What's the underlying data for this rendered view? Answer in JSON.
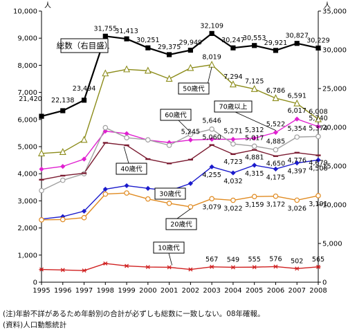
{
  "chart_data": {
    "type": "line",
    "categories": [
      "1995",
      "1996",
      "1997",
      "1998",
      "1999",
      "2000",
      "2001",
      "2002",
      "2003",
      "2004",
      "2005",
      "2006",
      "2007",
      "2008"
    ],
    "left_axis": {
      "unit": "人",
      "min": 0,
      "max": 10000,
      "ticks": [
        "0",
        "1,000",
        "2,000",
        "3,000",
        "4,000",
        "5,000",
        "6,000",
        "7,000",
        "8,000",
        "9,000",
        "10,000"
      ]
    },
    "right_axis": {
      "unit": "人",
      "min": 0,
      "max": 35000,
      "ticks": [
        "0",
        "5,000",
        "10,000",
        "15,000",
        "20,000",
        "25,000",
        "30,000",
        "35,000"
      ]
    },
    "series": [
      {
        "name": "総数（右目盛）",
        "axis": "right",
        "color": "#000000",
        "marker": "square",
        "values": [
          21420,
          22138,
          23494,
          31755,
          31413,
          30251,
          29375,
          29949,
          32109,
          30247,
          30553,
          29921,
          30827,
          30229
        ],
        "labels": [
          "21,420",
          "22,138",
          "23,494",
          "31,755",
          "31,413",
          "30,251",
          "29,375",
          "29,949",
          "32,109",
          "30,247",
          "30,553",
          "29,921",
          "30,827",
          "30,229"
        ]
      },
      {
        "name": "50歳代",
        "axis": "left",
        "color": "#8c8c1a",
        "marker": "triangle",
        "values": [
          4750,
          4800,
          5250,
          7700,
          7850,
          7800,
          7500,
          7900,
          8019,
          7294,
          7125,
          6786,
          6591,
          6008
        ],
        "labels": [
          "",
          "",
          "",
          "",
          "",
          "",
          "",
          "",
          "8,019",
          "7,294",
          "7,125",
          "6,786",
          "6,591",
          "6,008"
        ]
      },
      {
        "name": "70歳以上",
        "axis": "left",
        "color": "#e020d0",
        "marker": "diamond",
        "values": [
          4170,
          4270,
          4540,
          5570,
          5480,
          5240,
          5150,
          5245,
          5271,
          5271,
          5312,
          5522,
          6017,
          5740
        ],
        "labels": [
          "",
          "",
          "",
          "",
          "",
          "",
          "",
          "5,245",
          "",
          "5,271",
          "5,312",
          "5,522",
          "6,017",
          "5,740"
        ]
      },
      {
        "name": "60歳代",
        "axis": "left",
        "color": "#a0a0a0",
        "marker": "circle",
        "values": [
          3380,
          3760,
          4000,
          5700,
          5330,
          5250,
          5050,
          5450,
          5646,
          5100,
          5017,
          4885,
          5354,
          5374
        ],
        "labels": [
          "",
          "",
          "",
          "",
          "",
          "",
          "",
          "",
          "5,646",
          "",
          "5,017",
          "4,885",
          "5,354",
          "5,374"
        ]
      },
      {
        "name": "40歳代",
        "axis": "left",
        "color": "#7a1a30",
        "marker": "dash",
        "values": [
          3780,
          3930,
          4020,
          5140,
          5050,
          4540,
          4380,
          4520,
          5060,
          4723,
          4881,
          4650,
          4776,
          4679
        ],
        "labels": [
          "",
          "",
          "",
          "",
          "",
          "",
          "",
          "",
          "5,060",
          "4,723",
          "4,881",
          "4,650",
          "4,776",
          "4,679"
        ]
      },
      {
        "name": "30歳代",
        "axis": "left",
        "color": "#1a1acc",
        "marker": "diamond",
        "values": [
          2330,
          2420,
          2620,
          3430,
          3560,
          3460,
          3370,
          3640,
          4255,
          4032,
          4315,
          4175,
          4397,
          4508
        ],
        "labels": [
          "",
          "",
          "",
          "",
          "",
          "",
          "",
          "",
          "4,255",
          "4,032",
          "4,315",
          "4,175",
          "4,397",
          "4,508"
        ]
      },
      {
        "name": "20歳代",
        "axis": "left",
        "color": "#e08a20",
        "marker": "circle",
        "values": [
          2300,
          2310,
          2380,
          3250,
          3290,
          3070,
          2910,
          2780,
          3079,
          3022,
          3159,
          3172,
          3026,
          3191
        ],
        "labels": [
          "",
          "",
          "",
          "",
          "",
          "",
          "",
          "",
          "3,079",
          "3,022",
          "3,159",
          "3,172",
          "3,026",
          "3,191"
        ]
      },
      {
        "name": "10歳代",
        "axis": "left",
        "color": "#d02020",
        "marker": "star",
        "values": [
          470,
          450,
          430,
          690,
          600,
          560,
          550,
          470,
          567,
          549,
          555,
          576,
          502,
          565
        ],
        "labels": [
          "",
          "",
          "",
          "",
          "",
          "",
          "",
          "",
          "567",
          "549",
          "555",
          "576",
          "502",
          "565"
        ]
      }
    ],
    "grid": false
  },
  "notes": {
    "line1": "(注)年齢不詳があるため年齢別の合計が必ずしも総数に一致しない。08年確報。",
    "line2": "(資料)人口動態統計"
  },
  "colors": {
    "background": "#ffffff",
    "axis": "#000000"
  }
}
